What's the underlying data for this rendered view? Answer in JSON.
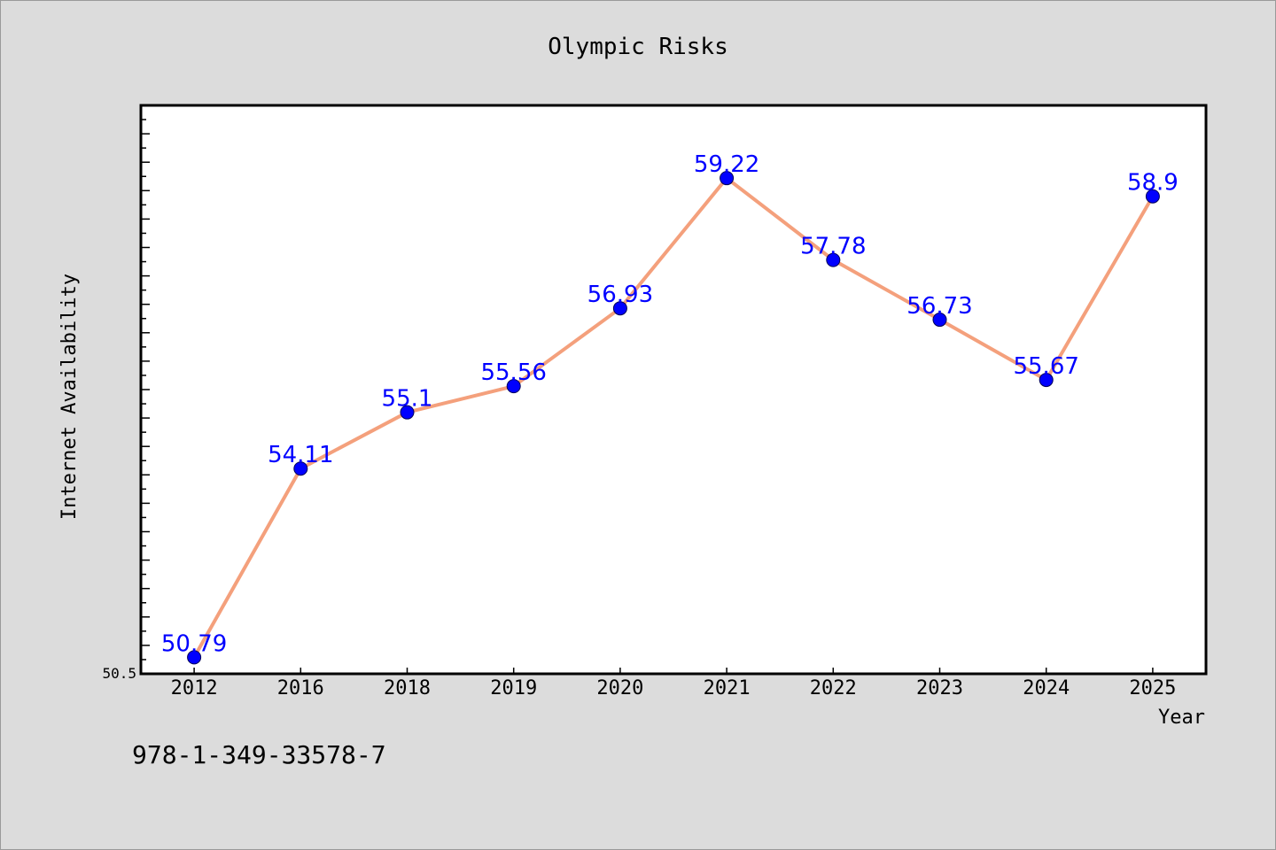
{
  "chart_data": {
    "type": "line",
    "title": "Olympic Risks",
    "xlabel": "Year",
    "ylabel": "Internet Availability",
    "categories": [
      "2012",
      "2016",
      "2018",
      "2019",
      "2020",
      "2021",
      "2022",
      "2023",
      "2024",
      "2025"
    ],
    "series": [
      {
        "values": [
          50.79,
          54.11,
          55.1,
          55.56,
          56.93,
          59.22,
          57.78,
          56.73,
          55.67,
          58.9
        ]
      }
    ],
    "data_labels": [
      "50.79",
      "54.11",
      "55.1",
      "55.56",
      "56.93",
      "59.22",
      "57.78",
      "56.73",
      "55.67",
      "58.9"
    ],
    "ylim": [
      50.5,
      60.5
    ],
    "ytick_labels": [
      "50.5"
    ],
    "grid": false,
    "legend": "none",
    "colors": {
      "line": "#f4a07c",
      "marker": "#0000ff",
      "data_label": "#0000ff",
      "plot_background": "#ffffff",
      "page_background": "#dcdcdc"
    }
  },
  "footer": {
    "isbn": "978-1-349-33578-7"
  }
}
